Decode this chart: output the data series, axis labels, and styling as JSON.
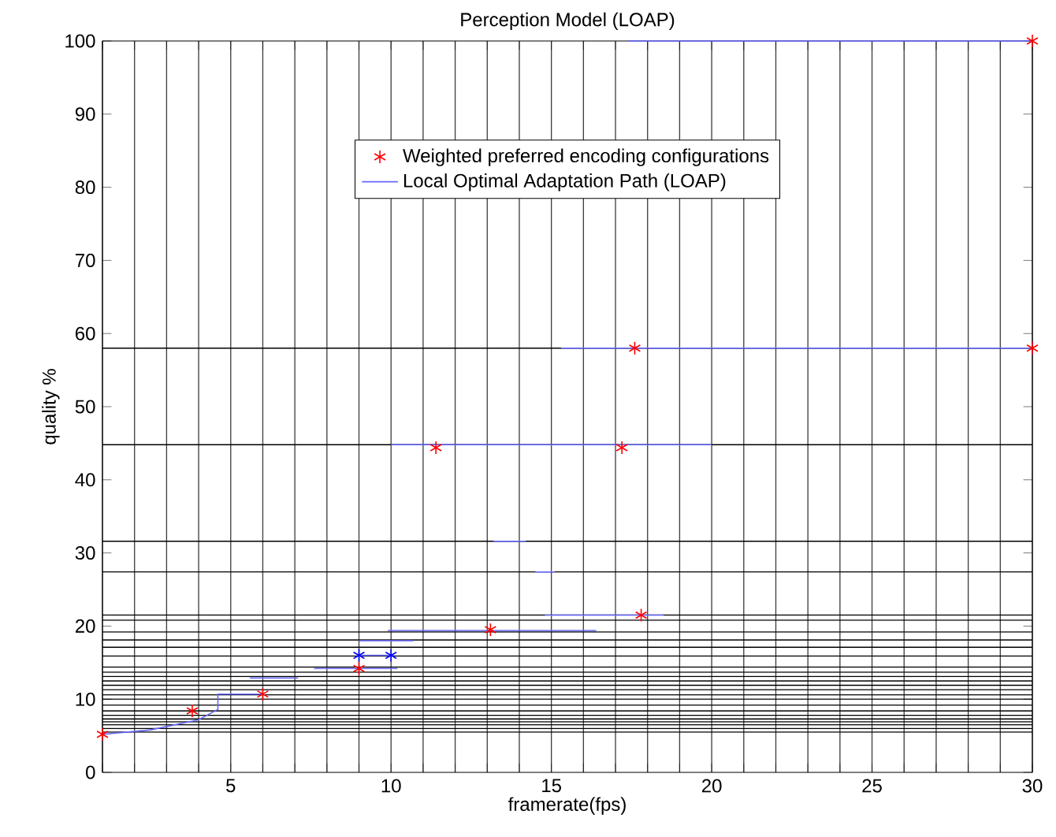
{
  "chart_data": {
    "type": "scatter",
    "title": "Perception Model (LOAP)",
    "xlabel": "framerate(fps)",
    "ylabel": "quality %",
    "xlim": [
      1,
      30
    ],
    "ylim": [
      0,
      100
    ],
    "xticks": [
      {
        "value": 1,
        "label": null
      },
      {
        "value": 2,
        "label": null
      },
      {
        "value": 3,
        "label": null
      },
      {
        "value": 4,
        "label": null
      },
      5,
      {
        "value": 6,
        "label": null
      },
      {
        "value": 7,
        "label": null
      },
      {
        "value": 8,
        "label": null
      },
      {
        "value": 9,
        "label": null
      },
      10,
      {
        "value": 11,
        "label": null
      },
      {
        "value": 12,
        "label": null
      },
      {
        "value": 13,
        "label": null
      },
      {
        "value": 14,
        "label": null
      },
      15,
      {
        "value": 16,
        "label": null
      },
      {
        "value": 17,
        "label": null
      },
      {
        "value": 18,
        "label": null
      },
      {
        "value": 19,
        "label": null
      },
      20,
      {
        "value": 21,
        "label": null
      },
      {
        "value": 22,
        "label": null
      },
      {
        "value": 23,
        "label": null
      },
      {
        "value": 24,
        "label": null
      },
      25,
      {
        "value": 26,
        "label": null
      },
      {
        "value": 27,
        "label": null
      },
      {
        "value": 28,
        "label": null
      },
      {
        "value": 29,
        "label": null
      },
      30
    ],
    "yticks": [
      0,
      10,
      20,
      30,
      40,
      50,
      60,
      70,
      80,
      90,
      100
    ],
    "grid": "x",
    "legend": "top",
    "ref_lines": [
      {
        "axis": "y",
        "value": 5.5
      },
      {
        "axis": "y",
        "value": 6.0
      },
      {
        "axis": "y",
        "value": 6.5
      },
      {
        "axis": "y",
        "value": 6.9
      },
      {
        "axis": "y",
        "value": 7.3
      },
      {
        "axis": "y",
        "value": 7.8
      },
      {
        "axis": "y",
        "value": 8.4
      },
      {
        "axis": "y",
        "value": 9.2
      },
      {
        "axis": "y",
        "value": 10.0
      },
      {
        "axis": "y",
        "value": 10.6
      },
      {
        "axis": "y",
        "value": 11.3
      },
      {
        "axis": "y",
        "value": 11.9
      },
      {
        "axis": "y",
        "value": 12.5
      },
      {
        "axis": "y",
        "value": 13.1
      },
      {
        "axis": "y",
        "value": 13.7
      },
      {
        "axis": "y",
        "value": 14.4
      },
      {
        "axis": "y",
        "value": 15.9
      },
      {
        "axis": "y",
        "value": 17.1
      },
      {
        "axis": "y",
        "value": 18.1
      },
      {
        "axis": "y",
        "value": 19.2
      },
      {
        "axis": "y",
        "value": 20.8
      },
      {
        "axis": "y",
        "value": 21.5
      },
      {
        "axis": "y",
        "value": 27.4
      },
      {
        "axis": "y",
        "value": 31.6
      },
      {
        "axis": "y",
        "value": 44.8
      },
      {
        "axis": "y",
        "value": 58
      }
    ],
    "series": [
      {
        "name": "Weighted preferred encoding configurations",
        "marker": "cross",
        "color": "#ff0000",
        "x": [
          1,
          3.8,
          6.0,
          9.0,
          11.4,
          13.1,
          17.2,
          17.6,
          17.8,
          30,
          30
        ],
        "values": [
          5.2,
          8.4,
          10.7,
          14.2,
          44.4,
          19.5,
          44.4,
          58,
          21.5,
          58,
          100
        ]
      },
      {
        "name": "Local Optimal Adaptation Path (LOAP)",
        "type": "line",
        "marker": "none",
        "color": "#6666ff",
        "x": [
          1,
          2.5,
          4,
          4.6,
          4.6,
          6.0,
          null,
          5.6,
          7.1,
          null,
          7.6,
          10.2,
          null,
          9,
          10.1,
          null,
          9,
          10.7,
          null,
          9.9,
          16.4,
          null,
          14.8,
          18.5,
          null,
          14.5,
          15.1,
          null,
          13.2,
          14.2,
          null,
          10,
          20,
          null,
          15.3,
          30,
          null,
          17.4,
          30
        ],
        "values": [
          5.2,
          5.8,
          7.2,
          8.6,
          10.7,
          10.7,
          null,
          12.9,
          12.9,
          null,
          14.2,
          14.2,
          null,
          16,
          16,
          null,
          18,
          18,
          null,
          19.4,
          19.4,
          null,
          21.5,
          21.5,
          null,
          27.4,
          27.4,
          null,
          31.6,
          31.6,
          null,
          44.8,
          44.8,
          null,
          58,
          58,
          null,
          100,
          100
        ]
      },
      {
        "marker": "cross",
        "color": "#0000ff",
        "x": [
          9,
          10
        ],
        "values": [
          16,
          16
        ]
      }
    ]
  }
}
